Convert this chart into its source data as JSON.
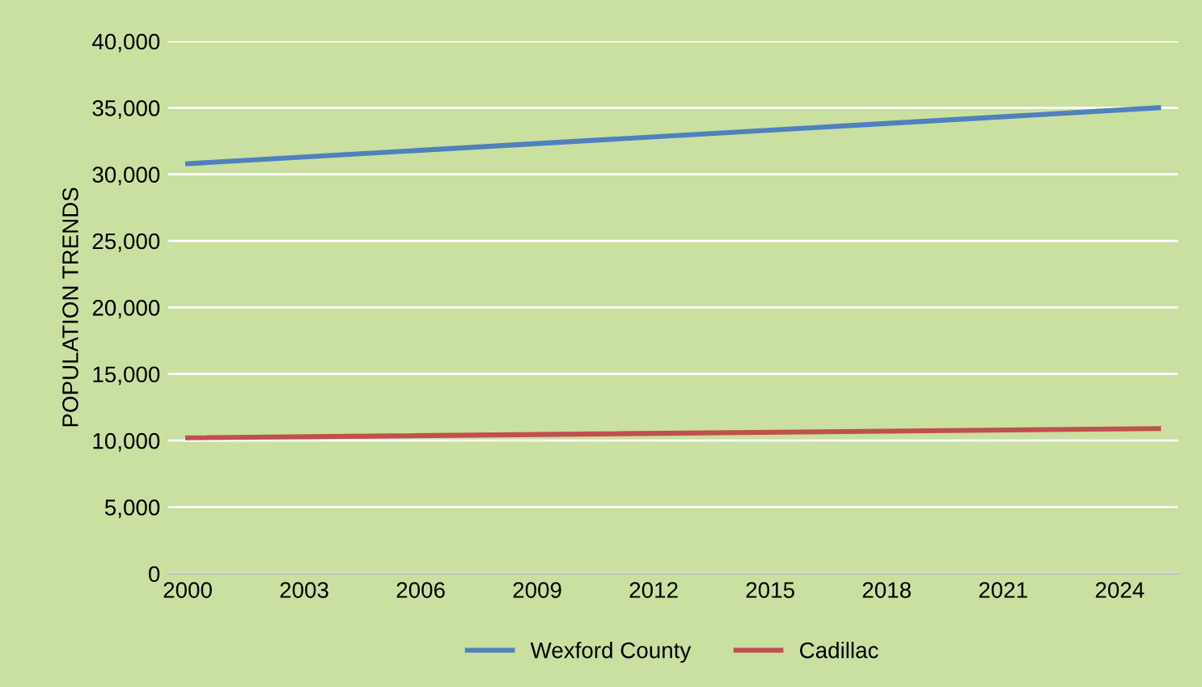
{
  "chart_data": {
    "type": "line",
    "ylabel": "POPULATION TRENDS",
    "x": [
      2000,
      2025
    ],
    "series": [
      {
        "name": "Wexford County",
        "color": "#4f81bd",
        "values": [
          30800,
          35000
        ]
      },
      {
        "name": "Cadillac",
        "color": "#c0504d",
        "values": [
          10200,
          10900
        ]
      }
    ],
    "xlim": [
      1999.5,
      2025.5
    ],
    "xticks": [
      2000,
      2003,
      2006,
      2009,
      2012,
      2015,
      2018,
      2021,
      2024
    ],
    "ylim": [
      0,
      40000
    ],
    "yticks": [
      {
        "value": 0,
        "label": "0"
      },
      {
        "value": 5000,
        "label": "5,000"
      },
      {
        "value": 10000,
        "label": "10,000"
      },
      {
        "value": 15000,
        "label": "15,000"
      },
      {
        "value": 20000,
        "label": "20,000"
      },
      {
        "value": 25000,
        "label": "25,000"
      },
      {
        "value": 30000,
        "label": "30,000"
      },
      {
        "value": 35000,
        "label": "35,000"
      },
      {
        "value": 40000,
        "label": "40,000"
      }
    ],
    "grid": "y",
    "legend": "bottom",
    "marker": "none",
    "line_style": "solid"
  }
}
